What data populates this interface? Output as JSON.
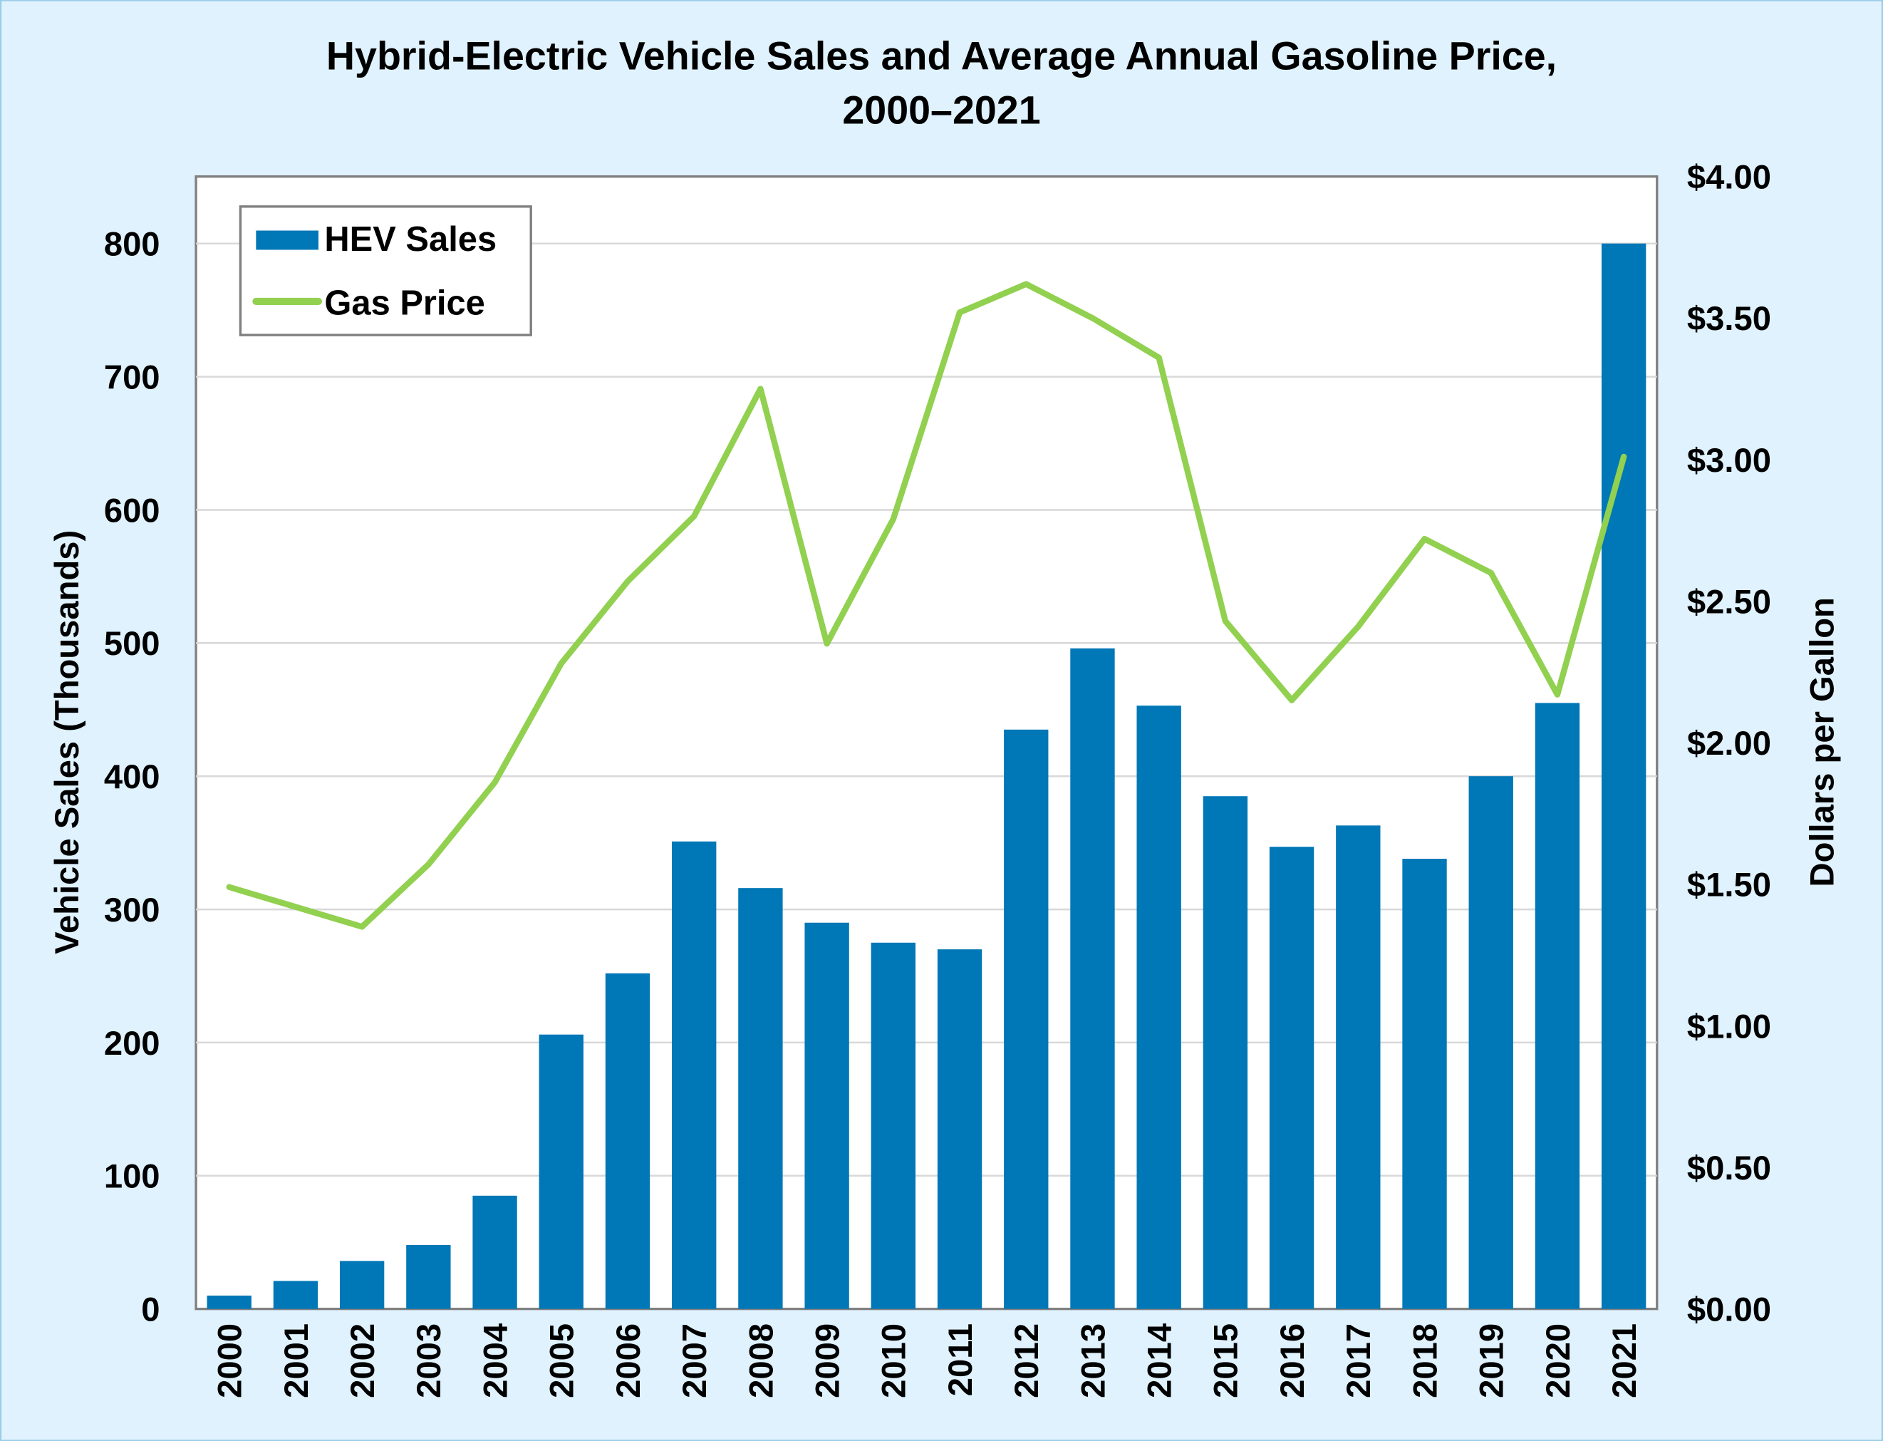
{
  "chart_data": {
    "type": "bar+line",
    "title": "Hybrid-Electric Vehicle Sales and Average Annual Gasoline Price,",
    "title_line2": "2000–2021",
    "ylabel": "Vehicle Sales (Thousands)",
    "y2label": "Dollars per Gallon",
    "ylim": [
      0,
      850
    ],
    "y2lim": [
      0,
      4
    ],
    "yticks": [
      "0",
      "100",
      "200",
      "300",
      "400",
      "500",
      "600",
      "700",
      "800"
    ],
    "y2ticks": [
      "$0.00",
      "$0.50",
      "$1.00",
      "$1.50",
      "$2.00",
      "$2.50",
      "$3.00",
      "$3.50",
      "$4.00"
    ],
    "grid": true,
    "legend_position": "top-left",
    "categories": [
      "2000",
      "2001",
      "2002",
      "2003",
      "2004",
      "2005",
      "2006",
      "2007",
      "2008",
      "2009",
      "2010",
      "2011",
      "2012",
      "2013",
      "2014",
      "2015",
      "2016",
      "2017",
      "2018",
      "2019",
      "2020",
      "2021"
    ],
    "series": [
      {
        "name": "HEV Sales",
        "type": "bar",
        "axis": "left",
        "color": "#0077b6",
        "values": [
          10,
          21,
          36,
          48,
          85,
          206,
          252,
          351,
          316,
          290,
          275,
          270,
          435,
          496,
          453,
          385,
          347,
          363,
          338,
          400,
          455,
          800
        ]
      },
      {
        "name": "Gas Price",
        "type": "line",
        "axis": "right",
        "color": "#92d050",
        "values": [
          1.49,
          1.42,
          1.35,
          1.57,
          1.86,
          2.28,
          2.57,
          2.8,
          3.25,
          2.35,
          2.79,
          3.52,
          3.62,
          3.5,
          3.36,
          2.43,
          2.15,
          2.41,
          2.72,
          2.6,
          2.17,
          3.01
        ]
      }
    ]
  }
}
